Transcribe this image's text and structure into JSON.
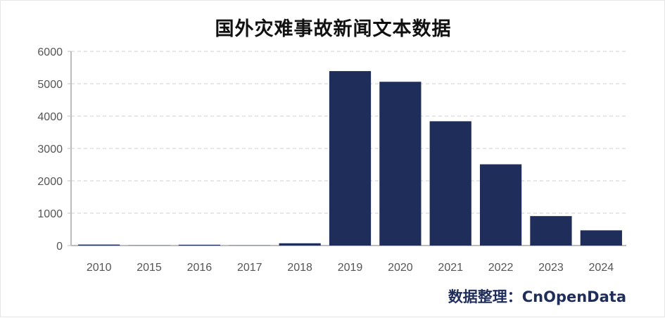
{
  "chart_data": {
    "type": "bar",
    "title": "国外灾难事故新闻文本数据",
    "categories": [
      "2010",
      "2015",
      "2016",
      "2017",
      "2018",
      "2019",
      "2020",
      "2021",
      "2022",
      "2023",
      "2024"
    ],
    "values": [
      30,
      5,
      25,
      5,
      70,
      5390,
      5060,
      3840,
      2510,
      910,
      470
    ],
    "ylim": [
      0,
      6000
    ],
    "yticks": [
      "0",
      "1000",
      "2000",
      "3000",
      "4000",
      "5000",
      "6000"
    ],
    "xlabel": "",
    "ylabel": "",
    "grid": "horizontal dashed",
    "bar_color": "#1f2d5a"
  },
  "source_label": "数据整理：CnOpenData"
}
